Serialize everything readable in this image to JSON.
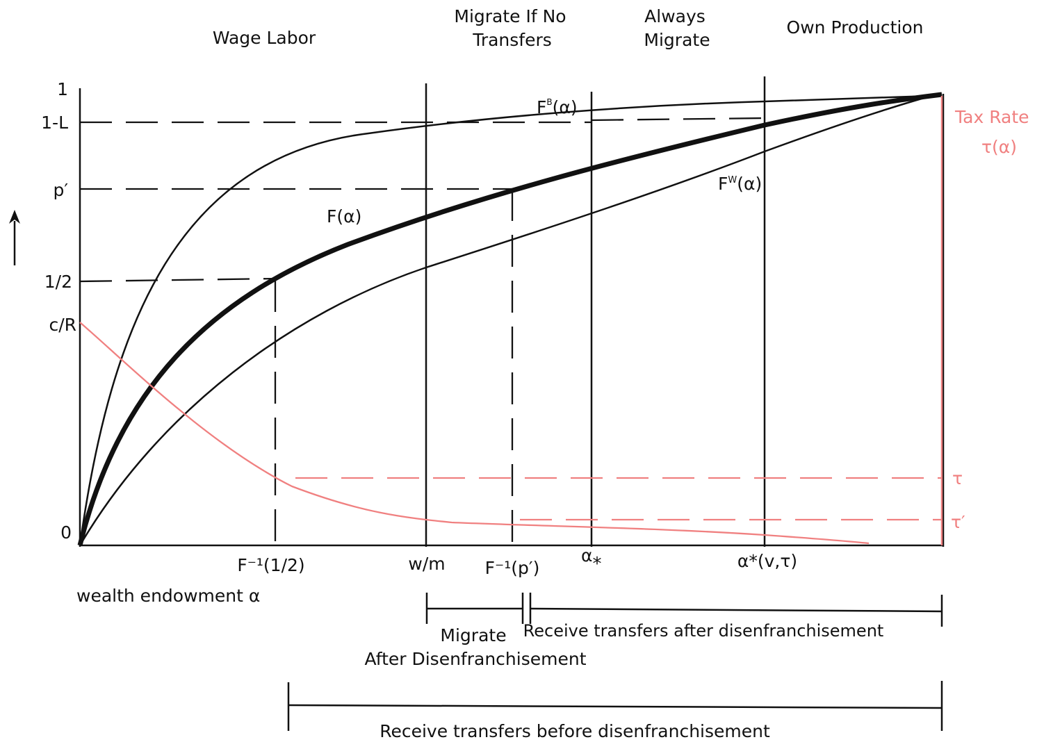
{
  "colors": {
    "ink": "#111111",
    "pink": "#f08080",
    "background": "#ffffff"
  },
  "regions": {
    "wage_labor": "Wage Labor",
    "migrate_if_no_transfers_line1": "Migrate If No",
    "migrate_if_no_transfers_line2": "Transfers",
    "always_migrate_line1": "Always",
    "always_migrate_line2": "Migrate",
    "own_production": "Own Production"
  },
  "y_axis": {
    "one": "1",
    "one_minus_L": "1-L",
    "p_prime": "p′",
    "half": "1/2",
    "c_over_R": "c/R",
    "zero": "0"
  },
  "x_axis": {
    "f_inv_half": "F⁻¹(1/2)",
    "w_over_m": "w/m",
    "f_inv_p_prime": "F⁻¹(p′)",
    "alpha_star_low": "α",
    "alpha_star_low_sub": "*",
    "alpha_star_high": "α*(v,τ)",
    "axis_title": "wealth endowment α"
  },
  "curves": {
    "f_b_base": "F",
    "f_b_sup": "B",
    "f_b_arg": "(α)",
    "f": "F(α)",
    "f_w_base": "F",
    "f_w_sup": "W",
    "f_w_arg": "(α)"
  },
  "tax": {
    "title_line1": "Tax Rate",
    "title_line2": "τ(α)",
    "tau": "τ",
    "tau_prime": "τ′"
  },
  "brackets": {
    "migrate_line1": "Migrate",
    "migrate_line2": "After Disenfranchisement",
    "receive_after": "Receive transfers after disenfranchisement",
    "receive_before": "Receive transfers before disenfranchisement"
  }
}
